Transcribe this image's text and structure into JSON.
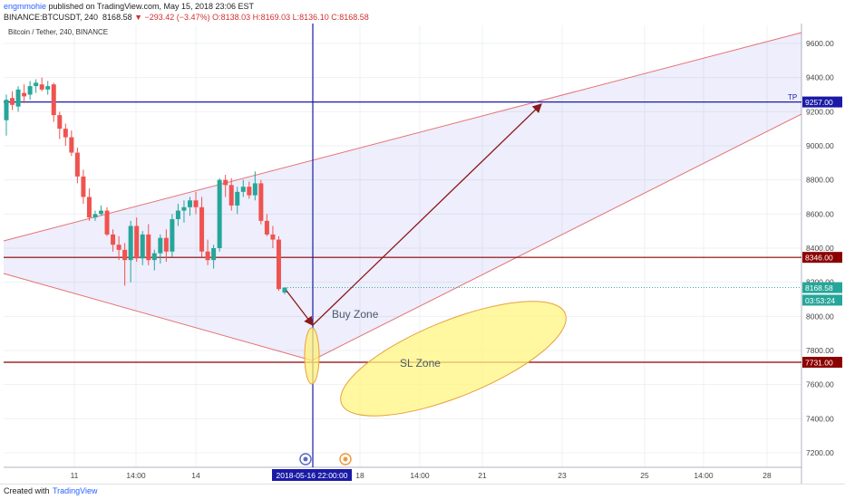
{
  "header": {
    "author": "engmmohie",
    "published": " published on TradingView.com, May 15, 2018 23:06 EST",
    "symbol": "BINANCE:BTCUSDT, 240",
    "last": "8168.58",
    "change": "▼ −293.42 (−3.47%)",
    "ohlc": "O:8138.03 H:8169.03 L:8136.10 C:8168.58"
  },
  "footer": {
    "created": "Created with",
    "brand": "TradingView"
  },
  "chart_data": {
    "type": "candlestick",
    "title": "Bitcoin / Tether, 240, BINANCE",
    "ylim": [
      7100,
      9700
    ],
    "y_ticks": [
      7200,
      7400,
      7600,
      7800,
      8000,
      8200,
      8400,
      8600,
      8800,
      9000,
      9200,
      9400,
      9600
    ],
    "x_tick_labels": [
      "11",
      "14:00",
      "14",
      "18",
      "14:00",
      "21",
      "23",
      "25",
      "14:00",
      "28"
    ],
    "grid": true,
    "price_labels": [
      {
        "text": "9257.00",
        "value": 9257,
        "color": "#1a1aa6"
      },
      {
        "text": "8346.00",
        "value": 8346,
        "color": "#8b0000"
      },
      {
        "text": "8168.58",
        "value": 8168.58,
        "color": "#26a69a"
      },
      {
        "text": "03:53:24",
        "value": 8095,
        "color": "#26a69a"
      },
      {
        "text": "7731.00",
        "value": 7731,
        "color": "#8b0000"
      }
    ],
    "tp_label": "TP",
    "crosshair_time_label": "2018-05-16 22:00:00",
    "annotations": [
      {
        "text": "Buy Zone"
      },
      {
        "text": "SL Zone"
      }
    ],
    "candles": [
      [
        9150,
        9300,
        9060,
        9270
      ],
      [
        9280,
        9320,
        9210,
        9240
      ],
      [
        9230,
        9350,
        9200,
        9330
      ],
      [
        9310,
        9360,
        9250,
        9290
      ],
      [
        9300,
        9380,
        9270,
        9350
      ],
      [
        9350,
        9390,
        9310,
        9370
      ],
      [
        9360,
        9400,
        9320,
        9330
      ],
      [
        9330,
        9380,
        9300,
        9350
      ],
      [
        9360,
        9370,
        9140,
        9180
      ],
      [
        9180,
        9200,
        9040,
        9100
      ],
      [
        9100,
        9130,
        9000,
        9050
      ],
      [
        9050,
        9090,
        8940,
        8960
      ],
      [
        8960,
        8990,
        8780,
        8820
      ],
      [
        8820,
        8860,
        8660,
        8700
      ],
      [
        8700,
        8750,
        8560,
        8580
      ],
      [
        8580,
        8620,
        8560,
        8600
      ],
      [
        8600,
        8650,
        8590,
        8620
      ],
      [
        8620,
        8640,
        8470,
        8480
      ],
      [
        8480,
        8510,
        8380,
        8420
      ],
      [
        8420,
        8470,
        8330,
        8390
      ],
      [
        8390,
        8430,
        8180,
        8330
      ],
      [
        8330,
        8560,
        8200,
        8530
      ],
      [
        8530,
        8580,
        8320,
        8340
      ],
      [
        8340,
        8500,
        8300,
        8480
      ],
      [
        8480,
        8540,
        8300,
        8330
      ],
      [
        8330,
        8390,
        8270,
        8370
      ],
      [
        8370,
        8480,
        8310,
        8460
      ],
      [
        8460,
        8510,
        8320,
        8380
      ],
      [
        8380,
        8600,
        8350,
        8570
      ],
      [
        8570,
        8660,
        8530,
        8620
      ],
      [
        8620,
        8680,
        8550,
        8640
      ],
      [
        8640,
        8700,
        8590,
        8680
      ],
      [
        8680,
        8730,
        8600,
        8640
      ],
      [
        8640,
        8700,
        8350,
        8380
      ],
      [
        8380,
        8450,
        8300,
        8330
      ],
      [
        8330,
        8420,
        8280,
        8400
      ],
      [
        8400,
        8810,
        8380,
        8800
      ],
      [
        8800,
        8830,
        8700,
        8770
      ],
      [
        8770,
        8810,
        8620,
        8650
      ],
      [
        8650,
        8760,
        8600,
        8730
      ],
      [
        8730,
        8800,
        8700,
        8760
      ],
      [
        8760,
        8790,
        8690,
        8710
      ],
      [
        8710,
        8850,
        8680,
        8780
      ],
      [
        8780,
        8800,
        8540,
        8560
      ],
      [
        8560,
        8600,
        8470,
        8480
      ],
      [
        8480,
        8530,
        8400,
        8450
      ],
      [
        8450,
        8470,
        8150,
        8160
      ],
      [
        8140,
        8170,
        8130,
        8168.58
      ]
    ]
  }
}
